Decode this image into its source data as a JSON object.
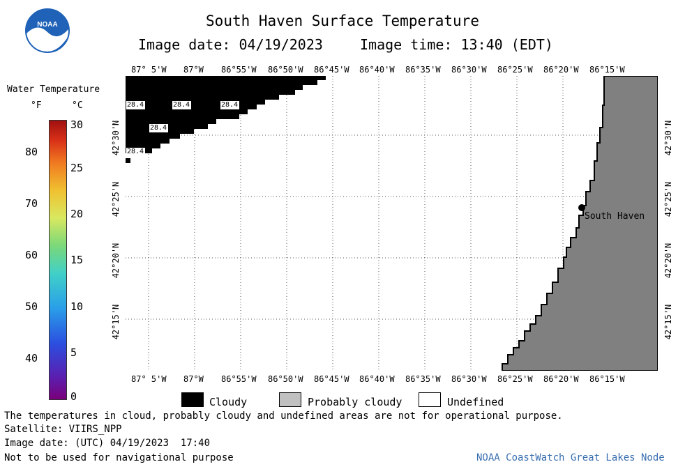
{
  "header": {
    "title": "South Haven Surface Temperature",
    "image_date_line": "Image date: 04/19/2023",
    "image_time_line": "Image time: 13:40 (EDT)"
  },
  "logo": {
    "text": "NOAA"
  },
  "colorbar": {
    "title": "Water Temperature",
    "unit_f": "°F",
    "unit_c": "°C",
    "f_ticks": [
      "80",
      "70",
      "60",
      "50",
      "40"
    ],
    "c_ticks": [
      "30",
      "25",
      "20",
      "15",
      "10",
      "5",
      "0"
    ]
  },
  "map": {
    "lon_labels": [
      "87° 5'W",
      "87°W",
      "86°55'W",
      "86°50'W",
      "86°45'W",
      "86°40'W",
      "86°35'W",
      "86°30'W",
      "86°25'W",
      "86°20'W",
      "86°15'W"
    ],
    "lat_labels": [
      "42°30'N",
      "42°25'N",
      "42°20'N",
      "42°15'N"
    ],
    "cloud_temps": [
      "28.4",
      "28.4",
      "28.4",
      "28.4",
      "28.4"
    ],
    "place_label": "South Haven",
    "colors": {
      "cloud": "#000000",
      "land": "#808080",
      "water": "#ffffff",
      "grid": "#555555"
    }
  },
  "legend": {
    "items": [
      {
        "label": "Cloudy",
        "color": "#000000"
      },
      {
        "label": "Probably cloudy",
        "color": "#c0c0c0"
      },
      {
        "label": "Undefined",
        "color": "#ffffff"
      }
    ]
  },
  "footer": {
    "disclaimer": "The temperatures in cloud, probably cloudy and undefined areas are not for operational purpose.",
    "satellite": "Satellite: VIIRS_NPP",
    "utc_date": "Image date: (UTC) 04/19/2023  17:40",
    "nav_note": "Not to be used for navigational purpose",
    "credit": "NOAA CoastWatch Great Lakes Node"
  }
}
